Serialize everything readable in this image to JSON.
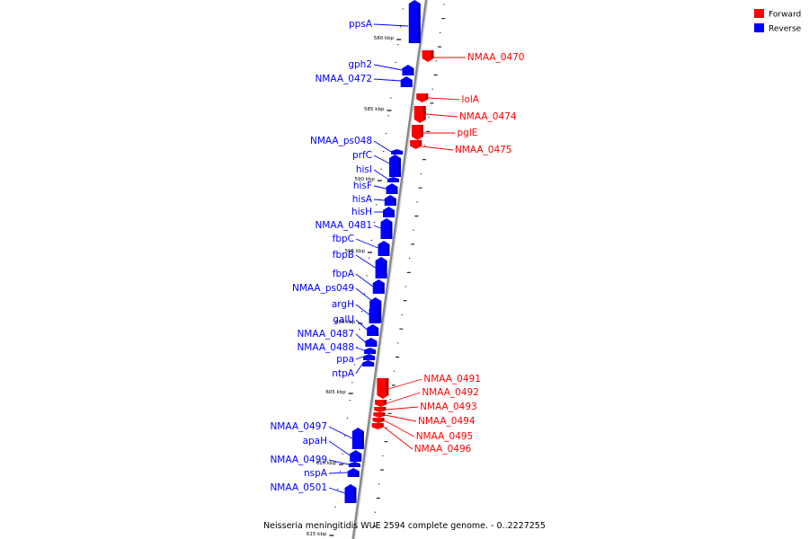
{
  "caption": "Neisseria meningitidis WUE 2594 complete genome. - 0..2227255",
  "legend": [
    {
      "label": "Forward",
      "color": "#ff0000"
    },
    {
      "label": "Reverse",
      "color": "#0000ff"
    }
  ],
  "colors": {
    "forward": "#ff0000",
    "reverse": "#0000ff",
    "backbone": "#888888"
  },
  "ticks": [
    "580 kbp",
    "585 kbp",
    "590 kbp",
    "595 kbp",
    "600 kbp",
    "605 kbp",
    "610 kbp",
    "615 kbp"
  ],
  "reverse_genes": [
    "ppsA",
    "gph2",
    "NMAA_0472",
    "NMAA_ps048",
    "prfC",
    "hisI",
    "hisF",
    "hisA",
    "hisH",
    "NMAA_0481",
    "fbpC",
    "fbpB",
    "fbpA",
    "NMAA_ps049",
    "argH",
    "galU",
    "NMAA_0487",
    "NMAA_0488",
    "ppa",
    "ntpA",
    "NMAA_0497",
    "apaH",
    "NMAA_0499",
    "nspA",
    "NMAA_0501"
  ],
  "forward_genes": [
    "NMAA_0470",
    "lolA",
    "NMAA_0474",
    "pglE",
    "NMAA_0475",
    "NMAA_0491",
    "NMAA_0492",
    "NMAA_0493",
    "NMAA_0494",
    "NMAA_0495",
    "NMAA_0496"
  ]
}
